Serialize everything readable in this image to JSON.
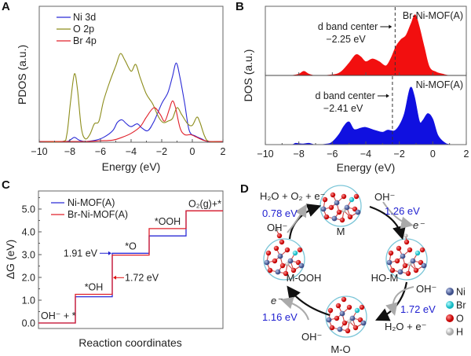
{
  "panels": {
    "A": {
      "letter": "A"
    },
    "B": {
      "letter": "B"
    },
    "C": {
      "letter": "C"
    },
    "D": {
      "letter": "D"
    }
  },
  "chart_data": [
    {
      "id": "A",
      "type": "line",
      "title": "",
      "xlabel": "Energy (eV)",
      "ylabel": "PDOS (a.u.)",
      "xlim": [
        -10,
        2
      ],
      "ylim": [
        0,
        1
      ],
      "xticks": [
        "−10",
        "−8",
        "−6",
        "−4",
        "−2",
        "0",
        "2"
      ],
      "xtick_values": [
        -10,
        -8,
        -6,
        -4,
        -2,
        0,
        2
      ],
      "legend_position": "top-left",
      "series": [
        {
          "name": "Ni 3d",
          "color": "#2b2bd6",
          "points": [
            [
              -10,
              0
            ],
            [
              -8.3,
              0
            ],
            [
              -8,
              0.01
            ],
            [
              -7.7,
              0.03
            ],
            [
              -7.4,
              0.01
            ],
            [
              -7,
              0
            ],
            [
              -6.3,
              0.01
            ],
            [
              -5.8,
              0.03
            ],
            [
              -5.2,
              0.08
            ],
            [
              -4.9,
              0.14
            ],
            [
              -4.6,
              0.16
            ],
            [
              -4.3,
              0.13
            ],
            [
              -4,
              0.11
            ],
            [
              -3.6,
              0.13
            ],
            [
              -3.3,
              0.1
            ],
            [
              -2.9,
              0.08
            ],
            [
              -2.5,
              0.15
            ],
            [
              -2,
              0.28
            ],
            [
              -1.6,
              0.36
            ],
            [
              -1.3,
              0.48
            ],
            [
              -1.05,
              0.58
            ],
            [
              -0.8,
              0.47
            ],
            [
              -0.5,
              0.28
            ],
            [
              -0.2,
              0.08
            ],
            [
              0.2,
              0.04
            ],
            [
              0.6,
              0.02
            ],
            [
              1,
              0
            ],
            [
              2,
              0
            ]
          ]
        },
        {
          "name": "O 2p",
          "color": "#8c8c1a",
          "points": [
            [
              -10,
              0
            ],
            [
              -8.5,
              0
            ],
            [
              -8.2,
              0.05
            ],
            [
              -7.95,
              0.3
            ],
            [
              -7.7,
              0.5
            ],
            [
              -7.5,
              0.38
            ],
            [
              -7.25,
              0.1
            ],
            [
              -7.0,
              0.02
            ],
            [
              -6.7,
              0.05
            ],
            [
              -6.4,
              0.13
            ],
            [
              -6.1,
              0.15
            ],
            [
              -5.8,
              0.3
            ],
            [
              -5.4,
              0.44
            ],
            [
              -5.0,
              0.56
            ],
            [
              -4.7,
              0.65
            ],
            [
              -4.4,
              0.6
            ],
            [
              -4.0,
              0.52
            ],
            [
              -3.7,
              0.57
            ],
            [
              -3.4,
              0.47
            ],
            [
              -3.0,
              0.35
            ],
            [
              -2.6,
              0.28
            ],
            [
              -2.2,
              0.18
            ],
            [
              -1.9,
              0.14
            ],
            [
              -1.6,
              0.15
            ],
            [
              -1.3,
              0.17
            ],
            [
              -1.0,
              0.25
            ],
            [
              -0.7,
              0.2
            ],
            [
              -0.3,
              0.13
            ],
            [
              0,
              0.12
            ],
            [
              0.3,
              0.18
            ],
            [
              0.5,
              0.14
            ],
            [
              0.8,
              0.04
            ],
            [
              1.1,
              0
            ],
            [
              2,
              0
            ]
          ]
        },
        {
          "name": "Br 4p",
          "color": "#e0202a",
          "points": [
            [
              -10,
              0
            ],
            [
              -7,
              0
            ],
            [
              -6,
              0.005
            ],
            [
              -5.2,
              0.01
            ],
            [
              -4.6,
              0.03
            ],
            [
              -4,
              0.06
            ],
            [
              -3.4,
              0.11
            ],
            [
              -3.0,
              0.18
            ],
            [
              -2.5,
              0.25
            ],
            [
              -2.1,
              0.2
            ],
            [
              -1.8,
              0.15
            ],
            [
              -1.5,
              0.24
            ],
            [
              -1.3,
              0.3
            ],
            [
              -1.1,
              0.25
            ],
            [
              -0.8,
              0.1
            ],
            [
              -0.5,
              0.05
            ],
            [
              -0.1,
              0.05
            ],
            [
              0.3,
              0.03
            ],
            [
              0.7,
              0.01
            ],
            [
              1.1,
              0
            ],
            [
              2,
              0
            ]
          ]
        }
      ]
    },
    {
      "id": "B",
      "type": "area",
      "xlabel": "Energy (eV)",
      "ylabel": "DOS (a.u.)",
      "xlim": [
        -10,
        2
      ],
      "xticks": [
        "−10",
        "−8",
        "−6",
        "−4",
        "−2",
        "0",
        "2"
      ],
      "xtick_values": [
        -10,
        -8,
        -6,
        -4,
        -2,
        0,
        2
      ],
      "series": [
        {
          "name": "Br-Ni-MOF(A)",
          "color": "#f20f0f",
          "d_band_center": -2.25,
          "annotation": [
            "d band center",
            "−2.25 eV"
          ],
          "points": [
            [
              -10,
              0
            ],
            [
              -8.5,
              0
            ],
            [
              -8,
              0.02
            ],
            [
              -7.7,
              0.06
            ],
            [
              -7.4,
              0.02
            ],
            [
              -7,
              0
            ],
            [
              -6,
              0.01
            ],
            [
              -5.5,
              0.05
            ],
            [
              -5,
              0.18
            ],
            [
              -4.6,
              0.3
            ],
            [
              -4.3,
              0.27
            ],
            [
              -4,
              0.2
            ],
            [
              -3.6,
              0.24
            ],
            [
              -3.2,
              0.2
            ],
            [
              -2.8,
              0.14
            ],
            [
              -2.5,
              0.25
            ],
            [
              -2.2,
              0.42
            ],
            [
              -1.9,
              0.52
            ],
            [
              -1.6,
              0.58
            ],
            [
              -1.3,
              0.75
            ],
            [
              -1.05,
              0.88
            ],
            [
              -0.8,
              0.7
            ],
            [
              -0.5,
              0.4
            ],
            [
              -0.2,
              0.12
            ],
            [
              0.2,
              0.05
            ],
            [
              0.6,
              0.02
            ],
            [
              1,
              0
            ],
            [
              2,
              0
            ]
          ]
        },
        {
          "name": "Ni-MOF(A)",
          "color": "#1010e0",
          "d_band_center": -2.41,
          "annotation": [
            "d band center",
            "−2.41 eV"
          ],
          "points": [
            [
              -10,
              0
            ],
            [
              -8.5,
              0
            ],
            [
              -8.2,
              0.02
            ],
            [
              -7.8,
              0.01
            ],
            [
              -7.4,
              0.02
            ],
            [
              -7,
              0
            ],
            [
              -6.3,
              0.01
            ],
            [
              -6,
              0.04
            ],
            [
              -5.6,
              0.15
            ],
            [
              -5.3,
              0.27
            ],
            [
              -5,
              0.33
            ],
            [
              -4.7,
              0.22
            ],
            [
              -4.3,
              0.24
            ],
            [
              -4,
              0.25
            ],
            [
              -3.5,
              0.21
            ],
            [
              -3,
              0.18
            ],
            [
              -2.7,
              0.21
            ],
            [
              -2.3,
              0.2
            ],
            [
              -2,
              0.28
            ],
            [
              -1.7,
              0.45
            ],
            [
              -1.35,
              0.82
            ],
            [
              -1.1,
              0.7
            ],
            [
              -0.8,
              0.34
            ],
            [
              -0.6,
              0.35
            ],
            [
              -0.3,
              0.45
            ],
            [
              0,
              0.37
            ],
            [
              0.3,
              0.14
            ],
            [
              0.7,
              0.03
            ],
            [
              1.1,
              0
            ],
            [
              2,
              0
            ]
          ]
        }
      ]
    },
    {
      "id": "C",
      "type": "line",
      "xlabel": "Reaction coordinates",
      "ylabel": "ΔG (eV)",
      "ylim": [
        -0.2,
        5.6
      ],
      "yticks": [
        "0.0",
        "1.0",
        "2.0",
        "3.0",
        "4.0",
        "5.0"
      ],
      "ytick_values": [
        0,
        1,
        2,
        3,
        4,
        5
      ],
      "categories": [
        "OH⁻ + *",
        "*OH",
        "*O",
        "*OOH",
        "O₂(g)+*"
      ],
      "legend_position": "top-left",
      "series": [
        {
          "name": "Ni-MOF(A)",
          "color": "#2b2bd6",
          "values": [
            0,
            1.15,
            3.06,
            3.82,
            4.92
          ]
        },
        {
          "name": "Br-Ni-MOF(A)",
          "color": "#e0202a",
          "values": [
            0,
            1.26,
            2.98,
            4.14,
            4.92
          ]
        }
      ],
      "annotations": [
        {
          "text": "1.91 eV",
          "series": "Ni-MOF(A)",
          "color": "#1f1fd0"
        },
        {
          "text": "1.72 eV",
          "series": "Br-Ni-MOF(A)",
          "color": "#e01010"
        }
      ]
    }
  ],
  "diagram_D": {
    "states": [
      "M",
      "HO-M",
      "M-O",
      "M-OOH"
    ],
    "steps": [
      {
        "energy": "1.26 eV",
        "in": "OH⁻",
        "out": "e⁻"
      },
      {
        "energy": "1.72 eV",
        "in": "OH⁻",
        "out": "H₂O + e⁻"
      },
      {
        "energy": "1.16 eV",
        "in": "OH⁻",
        "out": "e⁻"
      },
      {
        "energy": "0.78 eV",
        "in": "OH⁻",
        "out": "H₂O + O₂ + e⁻"
      }
    ],
    "legend": [
      {
        "label": "Ni",
        "color": "#5a6fa8"
      },
      {
        "label": "Br",
        "color": "#22d3d8"
      },
      {
        "label": "O",
        "color": "#e01818"
      },
      {
        "label": "H",
        "color": "#e8e8e8"
      }
    ],
    "energy_color": "#1f1fd0"
  }
}
